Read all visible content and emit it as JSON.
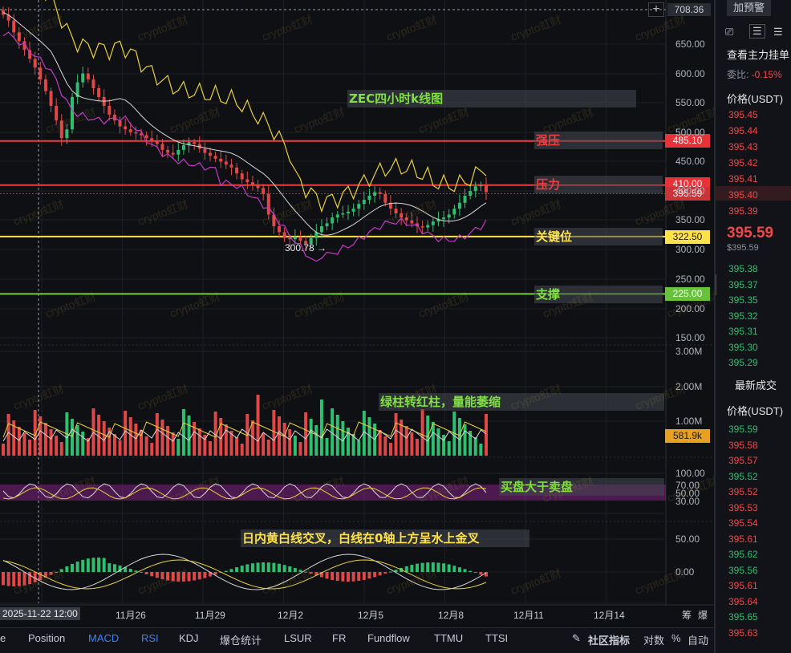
{
  "chart_title": "ZEC四小时k线图",
  "annotations": {
    "strong_resistance": "强压",
    "resistance": "压力",
    "key_level": "关键位",
    "support": "支撑",
    "volume_note": "绿柱转红柱，量能萎缩",
    "rsi_note": "买盘大于卖盘",
    "macd_note": "日内黄白线交叉，白线在0轴上方呈水上金叉"
  },
  "levels": {
    "strong_resistance": "485.10",
    "resistance": "410.00",
    "current_price": "395.59",
    "key_level": "322.50",
    "support": "225.00",
    "top_price": "708.36",
    "low_marker": "300.78 →",
    "volume_current": "581.9k"
  },
  "price_axis": [
    "650.00",
    "600.00",
    "550.00",
    "500.00",
    "450.00",
    "400.00",
    "350.00",
    "300.00",
    "250.00",
    "200.00",
    "150.00"
  ],
  "volume_axis": [
    "3.00M",
    "2.00M",
    "1.00M"
  ],
  "rsi_axis": [
    "100.00",
    "70.00",
    "50.00",
    "30.00"
  ],
  "macd_axis": [
    "50.00",
    "0.00"
  ],
  "time_axis": [
    "2025-11-22 12:00",
    "11月26",
    "11月29",
    "12月2",
    "12月5",
    "12月8",
    "12月11",
    "12月14"
  ],
  "bottom_tabs": [
    "e",
    "Position",
    "MACD",
    "RSI",
    "KDJ",
    "爆仓统计",
    "LSUR",
    "FR",
    "Fundflow",
    "TTMU",
    "TTSI"
  ],
  "bottom_right": {
    "community": "社区指标",
    "log": "对数",
    "percent": "%",
    "auto": "自动"
  },
  "corner_labels": {
    "left": "筹",
    "right": "爆"
  },
  "sidebar": {
    "alert_button": "加预警",
    "main_orders": "查看主力挂单",
    "ratio_label": "委比:",
    "ratio_value": "-0.15%",
    "price_header": "价格(USDT)",
    "asks": [
      "395.45",
      "395.44",
      "395.43",
      "395.42",
      "395.41",
      "395.40",
      "395.39"
    ],
    "last_price": "395.59",
    "last_price_sub": "$395.59",
    "bids": [
      "395.38",
      "395.37",
      "395.35",
      "395.32",
      "395.31",
      "395.30",
      "395.29"
    ],
    "trades_title": "最新成交",
    "trades_header": "价格(USDT)",
    "trades": [
      {
        "p": "395.59",
        "c": "green"
      },
      {
        "p": "395.58",
        "c": "red"
      },
      {
        "p": "395.57",
        "c": "red"
      },
      {
        "p": "395.52",
        "c": "green"
      },
      {
        "p": "395.52",
        "c": "red"
      },
      {
        "p": "395.53",
        "c": "red"
      },
      {
        "p": "395.54",
        "c": "red"
      },
      {
        "p": "395.61",
        "c": "red"
      },
      {
        "p": "395.62",
        "c": "green"
      },
      {
        "p": "395.56",
        "c": "green"
      },
      {
        "p": "395.61",
        "c": "red"
      },
      {
        "p": "395.64",
        "c": "red"
      },
      {
        "p": "395.65",
        "c": "green"
      },
      {
        "p": "395.63",
        "c": "red"
      }
    ]
  },
  "watermark": "crypto虹财",
  "colors": {
    "up": "#2fbf71",
    "down": "#e04848",
    "resistance": "#f03c3c",
    "key": "#ffe14a",
    "support": "#6fd13a",
    "note_green": "#7fe040",
    "note_yellow": "#ffe14a"
  },
  "chart_data": {
    "type": "candlestick",
    "title": "ZEC四小时k线图",
    "closes": [
      700,
      690,
      670,
      655,
      640,
      625,
      610,
      590,
      570,
      545,
      520,
      490,
      505,
      560,
      585,
      600,
      590,
      575,
      560,
      545,
      530,
      520,
      510,
      505,
      500,
      498,
      495,
      490,
      485,
      480,
      470,
      465,
      462,
      470,
      478,
      483,
      480,
      472,
      465,
      460,
      455,
      450,
      445,
      440,
      430,
      420,
      415,
      410,
      405,
      395,
      360,
      340,
      330,
      320,
      318,
      322,
      315,
      310,
      320,
      330,
      340,
      345,
      355,
      360,
      362,
      365,
      370,
      378,
      385,
      392,
      398,
      395,
      380,
      370,
      362,
      355,
      350,
      345,
      340,
      338,
      342,
      348,
      352,
      355,
      360,
      370,
      380,
      392,
      400,
      408,
      410,
      398
    ]
  }
}
